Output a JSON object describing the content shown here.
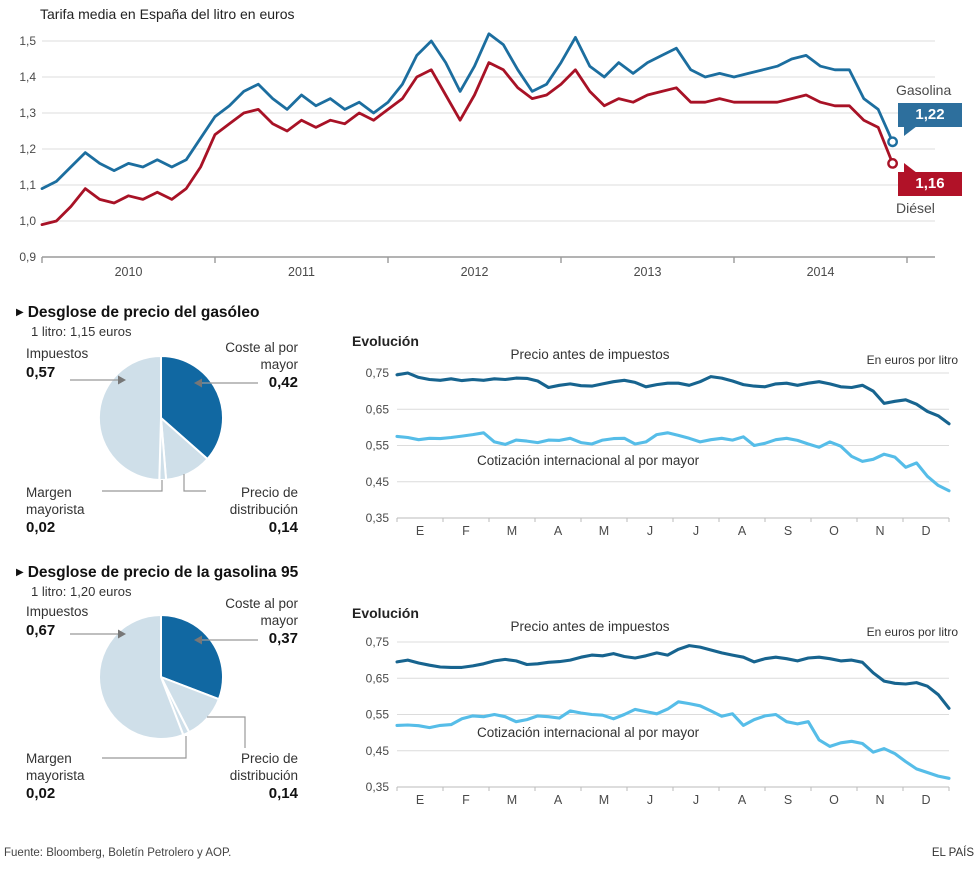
{
  "title": "Tarifa media en España del litro en euros",
  "footer": {
    "source": "Fuente: Bloomberg, Boletín Petrolero y AOP.",
    "brand": "EL PAÍS"
  },
  "colors": {
    "gasolina_line": "#1c6e9f",
    "diesel_line": "#a81226",
    "badge_blue": "#2d6f9d",
    "badge_red": "#b11228",
    "evo_dark": "#17648f",
    "evo_light": "#56bde8",
    "pie_dark": "#1168a2",
    "pie_light": "#cfdfe9",
    "grid": "#dcdcdc",
    "axis": "#9a9a9a"
  },
  "chart_data": [
    {
      "id": "tarifa_media",
      "type": "line",
      "title": "Tarifa media en España del litro en euros",
      "ylim": [
        0.9,
        1.5
      ],
      "ylabels": [
        "1,5",
        "1,4",
        "1,3",
        "1,2",
        "1,1",
        "1,0",
        "0,9"
      ],
      "x_years": [
        "2010",
        "2011",
        "2012",
        "2013",
        "2014"
      ],
      "legend_position": "right-end",
      "grid": true,
      "series": [
        {
          "name": "Gasolina",
          "color": "#1c6e9f",
          "end_label": "1,22",
          "values": [
            1.09,
            1.11,
            1.15,
            1.19,
            1.16,
            1.14,
            1.16,
            1.15,
            1.17,
            1.15,
            1.17,
            1.23,
            1.29,
            1.32,
            1.36,
            1.38,
            1.34,
            1.31,
            1.35,
            1.32,
            1.34,
            1.31,
            1.33,
            1.3,
            1.33,
            1.38,
            1.46,
            1.5,
            1.44,
            1.36,
            1.43,
            1.52,
            1.49,
            1.42,
            1.36,
            1.38,
            1.44,
            1.51,
            1.43,
            1.4,
            1.44,
            1.41,
            1.44,
            1.46,
            1.48,
            1.42,
            1.4,
            1.41,
            1.4,
            1.41,
            1.42,
            1.43,
            1.45,
            1.46,
            1.43,
            1.42,
            1.42,
            1.34,
            1.31,
            1.22
          ]
        },
        {
          "name": "Diésel",
          "color": "#a81226",
          "end_label": "1,16",
          "values": [
            0.99,
            1.0,
            1.04,
            1.09,
            1.06,
            1.05,
            1.07,
            1.06,
            1.08,
            1.06,
            1.09,
            1.15,
            1.24,
            1.27,
            1.3,
            1.31,
            1.27,
            1.25,
            1.28,
            1.26,
            1.28,
            1.27,
            1.3,
            1.28,
            1.31,
            1.34,
            1.4,
            1.42,
            1.35,
            1.28,
            1.35,
            1.44,
            1.42,
            1.37,
            1.34,
            1.35,
            1.38,
            1.42,
            1.36,
            1.32,
            1.34,
            1.33,
            1.35,
            1.36,
            1.37,
            1.33,
            1.33,
            1.34,
            1.33,
            1.33,
            1.33,
            1.33,
            1.34,
            1.35,
            1.33,
            1.32,
            1.32,
            1.28,
            1.26,
            1.16
          ]
        }
      ]
    },
    {
      "id": "desglose_gasoleo",
      "type": "pie",
      "title": "Desglose de precio del gasóleo",
      "subtitle": "1 litro: 1,15 euros",
      "total": 1.15,
      "slices": [
        {
          "label": "Coste al por mayor",
          "value": 0.42,
          "display": "0,42",
          "color": "#1168a2"
        },
        {
          "label": "Precio de distribución",
          "value": 0.14,
          "display": "0,14",
          "color": "#cfdfe9"
        },
        {
          "label": "Margen mayorista",
          "value": 0.02,
          "display": "0,02",
          "color": "#cfdfe9"
        },
        {
          "label": "Impuestos",
          "value": 0.57,
          "display": "0,57",
          "color": "#cfdfe9"
        }
      ]
    },
    {
      "id": "evolucion_gasoleo",
      "type": "line",
      "title": "Evolución",
      "unit_note": "En euros por litro",
      "ylim": [
        0.35,
        0.75
      ],
      "ylabels": [
        "0,75",
        "0,65",
        "0,55",
        "0,45",
        "0,35"
      ],
      "months": [
        "E",
        "F",
        "M",
        "A",
        "M",
        "J",
        "J",
        "A",
        "S",
        "O",
        "N",
        "D"
      ],
      "grid": true,
      "series": [
        {
          "name": "Precio antes de impuestos",
          "color": "#17648f",
          "values": [
            0.745,
            0.75,
            0.738,
            0.732,
            0.73,
            0.734,
            0.729,
            0.732,
            0.73,
            0.734,
            0.732,
            0.736,
            0.735,
            0.728,
            0.71,
            0.716,
            0.72,
            0.715,
            0.714,
            0.72,
            0.726,
            0.73,
            0.724,
            0.712,
            0.718,
            0.722,
            0.722,
            0.716,
            0.726,
            0.74,
            0.736,
            0.728,
            0.718,
            0.714,
            0.712,
            0.72,
            0.722,
            0.716,
            0.722,
            0.726,
            0.72,
            0.712,
            0.71,
            0.716,
            0.7,
            0.666,
            0.672,
            0.676,
            0.664,
            0.644,
            0.632,
            0.61
          ]
        },
        {
          "name": "Cotización internacional al por mayor",
          "color": "#56bde8",
          "values": [
            0.575,
            0.572,
            0.566,
            0.57,
            0.569,
            0.572,
            0.576,
            0.58,
            0.585,
            0.56,
            0.553,
            0.565,
            0.562,
            0.558,
            0.565,
            0.564,
            0.57,
            0.558,
            0.554,
            0.565,
            0.569,
            0.57,
            0.554,
            0.56,
            0.58,
            0.585,
            0.578,
            0.57,
            0.56,
            0.566,
            0.57,
            0.565,
            0.574,
            0.55,
            0.556,
            0.566,
            0.57,
            0.564,
            0.554,
            0.545,
            0.56,
            0.548,
            0.52,
            0.506,
            0.512,
            0.526,
            0.518,
            0.49,
            0.502,
            0.465,
            0.44,
            0.425
          ]
        }
      ]
    },
    {
      "id": "desglose_gasolina95",
      "type": "pie",
      "title": "Desglose de precio de la gasolina 95",
      "subtitle": "1 litro: 1,20 euros",
      "total": 1.2,
      "slices": [
        {
          "label": "Coste al por mayor",
          "value": 0.37,
          "display": "0,37",
          "color": "#1168a2"
        },
        {
          "label": "Precio de distribución",
          "value": 0.14,
          "display": "0,14",
          "color": "#cfdfe9"
        },
        {
          "label": "Margen mayorista",
          "value": 0.02,
          "display": "0,02",
          "color": "#cfdfe9"
        },
        {
          "label": "Impuestos",
          "value": 0.67,
          "display": "0,67",
          "color": "#cfdfe9"
        }
      ]
    },
    {
      "id": "evolucion_gasolina95",
      "type": "line",
      "title": "Evolución",
      "unit_note": "En euros por litro",
      "ylim": [
        0.35,
        0.75
      ],
      "ylabels": [
        "0,75",
        "0,65",
        "0,55",
        "0,45",
        "0,35"
      ],
      "months": [
        "E",
        "F",
        "M",
        "A",
        "M",
        "J",
        "J",
        "A",
        "S",
        "O",
        "N",
        "D"
      ],
      "grid": true,
      "series": [
        {
          "name": "Precio antes de impuestos",
          "color": "#17648f",
          "values": [
            0.695,
            0.7,
            0.692,
            0.686,
            0.681,
            0.68,
            0.68,
            0.684,
            0.69,
            0.698,
            0.702,
            0.698,
            0.688,
            0.69,
            0.694,
            0.696,
            0.7,
            0.708,
            0.714,
            0.712,
            0.718,
            0.71,
            0.706,
            0.712,
            0.72,
            0.714,
            0.73,
            0.74,
            0.736,
            0.728,
            0.72,
            0.714,
            0.708,
            0.695,
            0.704,
            0.708,
            0.704,
            0.698,
            0.706,
            0.708,
            0.704,
            0.698,
            0.7,
            0.694,
            0.665,
            0.642,
            0.636,
            0.634,
            0.638,
            0.628,
            0.605,
            0.567
          ]
        },
        {
          "name": "Cotización internacional al por mayor",
          "color": "#56bde8",
          "values": [
            0.52,
            0.521,
            0.519,
            0.514,
            0.52,
            0.522,
            0.538,
            0.546,
            0.544,
            0.55,
            0.544,
            0.53,
            0.536,
            0.546,
            0.544,
            0.54,
            0.56,
            0.554,
            0.55,
            0.548,
            0.538,
            0.55,
            0.564,
            0.558,
            0.552,
            0.565,
            0.585,
            0.58,
            0.574,
            0.56,
            0.545,
            0.552,
            0.52,
            0.536,
            0.546,
            0.55,
            0.53,
            0.524,
            0.53,
            0.48,
            0.462,
            0.472,
            0.476,
            0.47,
            0.446,
            0.456,
            0.442,
            0.42,
            0.4,
            0.39,
            0.38,
            0.374
          ]
        }
      ]
    }
  ]
}
